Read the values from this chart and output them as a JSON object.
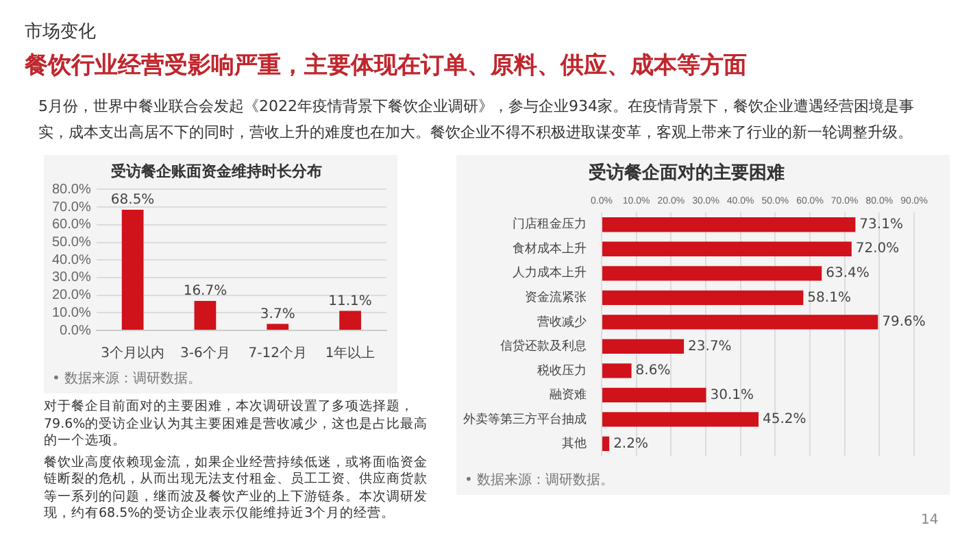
{
  "chart_data": [
    {
      "type": "bar",
      "title": "受访餐企账面资金维持时长分布",
      "categories": [
        "3个月以内",
        "3-6个月",
        "7-12个月",
        "1年以上"
      ],
      "values": [
        68.5,
        16.7,
        3.7,
        11.1
      ],
      "color": "#d0121b",
      "value_labels": [
        "68.5%",
        "16.7%",
        "3.7%",
        "11.1%"
      ],
      "ylim": [
        0,
        80
      ],
      "yticks": [
        {
          "value": 0,
          "label": "0.0%"
        },
        {
          "value": 10,
          "label": "10.0%"
        },
        {
          "value": 20,
          "label": "20.0%"
        },
        {
          "value": 30,
          "label": "30.0%"
        },
        {
          "value": 40,
          "label": "40.0%"
        },
        {
          "value": 50,
          "label": "50.0%"
        },
        {
          "value": 60,
          "label": "60.0%"
        },
        {
          "value": 70,
          "label": "70.0%"
        },
        {
          "value": 80,
          "label": "80.0%"
        }
      ],
      "grid": "y",
      "legend": false,
      "annotations": [
        "市场变化",
        "餐饮行业经营受影响严重，主要体现在订单、原料、供应、成本等方面",
        "5月份，世界中餐业联合会发起《2022年疫情背景下餐饮企业调研》，参与企业934家。在疫情背景下，餐饮企业遭遇经营困境是事实，成本支出高居不下的同时，营收上升的难度也在加大。餐饮企业不得不积极进取谋变革，客观上带来了行业的新一轮调整升级。",
        "对于餐企目前面对的主要困难，本次调研设置了多项选择题，79.6%的受访企业认为其主要困难是营收减少，这也是占比最高的一个选项。",
        "餐饮业高度依赖现金流，如果企业经营持续低迷，或将面临资金链断裂的危机，从而出现无法支付租金、员工工资、供应商货款等一系列的问题，继而波及餐饮产业的上下游链条。本次调研发现，约有68.5%的受访企业表示仅能维持近3个月的经营。",
        "14",
        "• 数据来源：调研数据。"
      ]
    },
    {
      "type": "bar",
      "orientation": "horizontal",
      "title": "受访餐企面对的主要困难",
      "categories": [
        "门店租金压力",
        "食材成本上升",
        "人力成本上升",
        "资金流紧张",
        "营收减少",
        "信贷还款及利息",
        "税收压力",
        "融资难",
        "外卖等第三方平台抽成",
        "其他"
      ],
      "values": [
        73.1,
        72.0,
        63.4,
        58.1,
        79.6,
        23.7,
        8.6,
        30.1,
        45.2,
        2.2
      ],
      "color": "#d0121b",
      "value_labels": [
        "73.1%",
        "72.0%",
        "63.4%",
        "58.1%",
        "79.6%",
        "23.7%",
        "8.6%",
        "30.1%",
        "45.2%",
        "2.2%"
      ],
      "xlim": [
        0,
        90
      ],
      "xticks": [
        {
          "value": 0,
          "label": "0.0%"
        },
        {
          "value": 10,
          "label": "10.0%"
        },
        {
          "value": 20,
          "label": "20.0%"
        },
        {
          "value": 30,
          "label": "30.0%"
        },
        {
          "value": 40,
          "label": "40.0%"
        },
        {
          "value": 50,
          "label": "50.0%"
        },
        {
          "value": 60,
          "label": "60.0%"
        },
        {
          "value": 70,
          "label": "70.0%"
        },
        {
          "value": 80,
          "label": "80.0%"
        },
        {
          "value": 90,
          "label": "90.0%"
        }
      ],
      "grid": "x",
      "legend": false,
      "annotations": [
        "• 数据来源：调研数据。"
      ]
    }
  ]
}
